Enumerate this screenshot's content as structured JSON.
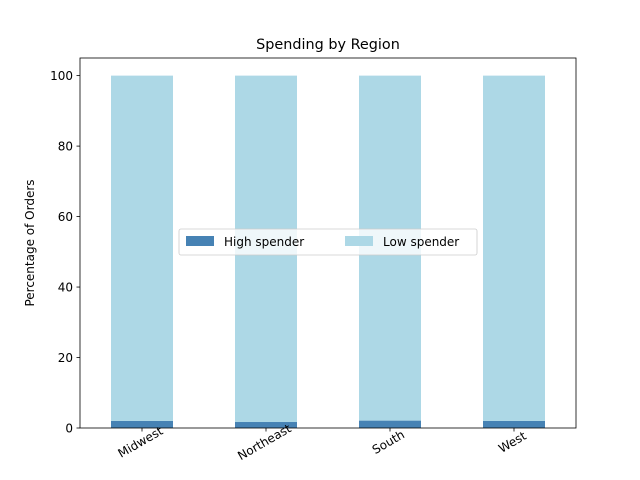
{
  "chart_data": {
    "type": "bar",
    "stacked": true,
    "title": "Spending by Region",
    "xlabel": "",
    "ylabel": "Percentage of Orders",
    "categories": [
      "Midwest",
      "Northeast",
      "South",
      "West"
    ],
    "series": [
      {
        "name": "High spender",
        "values": [
          2.0,
          1.7,
          2.1,
          2.0
        ],
        "color": "#4682b4"
      },
      {
        "name": "Low spender",
        "values": [
          98.0,
          98.3,
          97.9,
          98.0
        ],
        "color": "#add8e6"
      }
    ],
    "ylim": [
      0,
      105
    ],
    "yticks": [
      0,
      20,
      40,
      60,
      80,
      100
    ],
    "grid": false,
    "legend": {
      "placement": "center",
      "columns": 2
    },
    "xtick_rotation": 30
  }
}
